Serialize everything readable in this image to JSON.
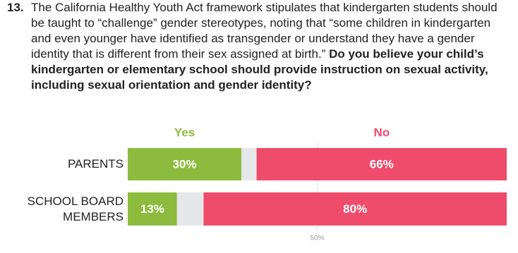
{
  "chart_data": {
    "type": "stacked-bar-horizontal",
    "number": "13.",
    "title": "The California Healthy Youth Act framework stipulates that kindergarten students should be taught to “challenge” gender stereotypes, noting that “some children in kindergarten and even younger have identified as transgender or understand they have a gender identity that is different from their sex assigned at birth.”",
    "title_emphasis": "Do you believe your child’s kindergarten or elementary school should provide instruction on sexual activity, including sexual orientation and gender identity?",
    "categories": [
      "PARENTS",
      "SCHOOL BOARD MEMBERS"
    ],
    "series": [
      {
        "name": "Yes",
        "color": "#8dbb3d",
        "values": [
          30,
          13
        ],
        "value_labels": [
          "30%",
          "13%"
        ]
      },
      {
        "color": "#e6e7e8",
        "values": [
          4,
          7
        ]
      },
      {
        "name": "No",
        "color": "#ef4c6c",
        "values": [
          66,
          80
        ],
        "value_labels": [
          "66%",
          "80%"
        ]
      }
    ],
    "xlim": [
      0,
      100
    ],
    "xticks": [
      {
        "value": 50,
        "label": "50%"
      }
    ],
    "grid": true
  }
}
